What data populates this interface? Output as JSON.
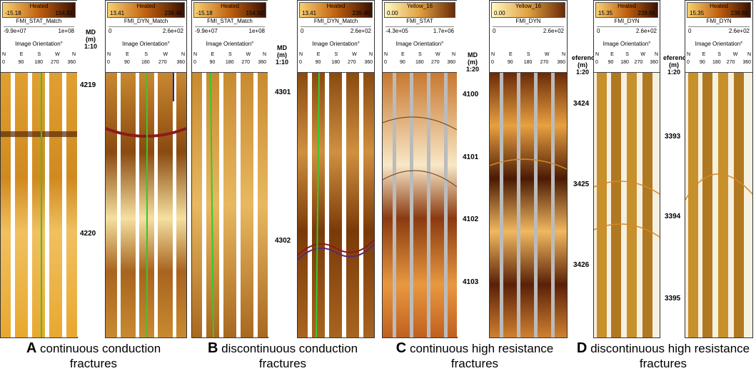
{
  "panels": [
    {
      "letter": "A",
      "caption_line1": "continuous conduction",
      "caption_line2": "fractures",
      "depth_title": [
        "MD",
        "(m)",
        "1:10"
      ],
      "depths": [
        "4219",
        "4220"
      ],
      "tracks": [
        {
          "colormap": "Heated",
          "cmin": "-15.18",
          "cmax": "154.92",
          "name": "FMI_STAT_Match",
          "rmin": "-9.9e+07",
          "rmax": "1e+08",
          "orient": "Image Orientation°",
          "ticks": [
            "N",
            "E",
            "S",
            "W",
            "N"
          ],
          "ticknums": [
            "0",
            "90",
            "180",
            "270",
            "360"
          ]
        },
        {
          "colormap": "Heated",
          "cmin": "13.41",
          "cmax": "239.45",
          "name": "FMI_DYN_Match",
          "rmin": "0",
          "rmax": "2.6e+02",
          "orient": "Image Orientation°",
          "ticks": [
            "N",
            "E",
            "S",
            "W",
            "N"
          ],
          "ticknums": [
            "0",
            "90",
            "180",
            "270",
            "360"
          ]
        }
      ]
    },
    {
      "letter": "B",
      "caption_line1": "discontinuous conduction",
      "caption_line2": "fractures",
      "depth_title": [
        "MD",
        "(m)",
        "1:10"
      ],
      "depths": [
        "4301",
        "4302"
      ],
      "tracks": [
        {
          "colormap": "Heated",
          "cmin": "-15.18",
          "cmax": "154.92",
          "name": "FMI_STAT_Match",
          "rmin": "-9.9e+07",
          "rmax": "1e+08",
          "orient": "Image Orientation°",
          "ticks": [
            "N",
            "E",
            "S",
            "W",
            "N"
          ],
          "ticknums": [
            "0",
            "90",
            "180",
            "270",
            "360"
          ]
        },
        {
          "colormap": "Heated",
          "cmin": "13.41",
          "cmax": "239.45",
          "name": "FMI_DYN_Match",
          "rmin": "0",
          "rmax": "2.6e+02",
          "orient": "Image Orientation°",
          "ticks": [
            "N",
            "E",
            "S",
            "W",
            "N"
          ],
          "ticknums": [
            "0",
            "90",
            "180",
            "270",
            "360"
          ]
        }
      ]
    },
    {
      "letter": "C",
      "caption_line1": "continuous high resistance",
      "caption_line2": "fractures",
      "depth_title": [
        "MD",
        "(m)",
        "1:20"
      ],
      "depths": [
        "4100",
        "4101",
        "4102",
        "4103"
      ],
      "tracks": [
        {
          "colormap": "Yellow_16",
          "cmin": "0.00",
          "cmax": "",
          "name": "FMI_STAT",
          "rmin": "-4.3e+05",
          "rmax": "1.7e+06",
          "orient": "Image Orientation°",
          "ticks": [
            "N",
            "E",
            "S",
            "W",
            "N"
          ],
          "ticknums": [
            "0",
            "90",
            "180",
            "270",
            "360"
          ]
        },
        {
          "colormap": "Yellow_16",
          "cmin": "0.00",
          "cmax": "",
          "name": "FMI_DYN",
          "rmin": "0",
          "rmax": "2.6e+02",
          "orient": "",
          "ticks": [
            "N",
            "E",
            "S",
            "W",
            "N"
          ],
          "ticknums": [
            "0",
            "90",
            "180",
            "270",
            "360"
          ]
        }
      ]
    },
    {
      "letter": "D",
      "caption_line1": "discontinuous high resistance",
      "caption_line2": "fractures",
      "depth_title": [
        "eferenc",
        "(m)",
        "1:20"
      ],
      "depths": [
        "3424",
        "3425",
        "3426"
      ],
      "depth_title2": [
        "eferenc",
        "(m)",
        "1:20"
      ],
      "depths2": [
        "3393",
        "3394",
        "3395"
      ],
      "tracks": [
        {
          "colormap": "Heated",
          "cmin": "15.35",
          "cmax": "239.65",
          "name": "FMI_DYN",
          "rmin": "0",
          "rmax": "2.6e+02",
          "orient": "Image Orientation°",
          "ticks": [
            "N",
            "E",
            "S",
            "W",
            "N"
          ],
          "ticknums": [
            "0",
            "90",
            "180",
            "270",
            "360"
          ]
        },
        {
          "colormap": "Heated",
          "cmin": "15.35",
          "cmax": "239.65",
          "name": "FMI_DYN",
          "rmin": "0",
          "rmax": "2.6e+02",
          "orient": "Image Orientation°",
          "ticks": [
            "N",
            "E",
            "S",
            "W",
            "N"
          ],
          "ticknums": [
            "0",
            "90",
            "180",
            "270",
            "360"
          ]
        }
      ]
    }
  ],
  "colors": {
    "heated_dark": "#5a2a08",
    "heated_mid": "#c8781a",
    "heated_light": "#f5c86a",
    "fracture_red": "#8b1a1a",
    "fracture_purple": "#5a2a6a",
    "fracture_orange": "#d08a30",
    "green_line": "#2ecc2e",
    "blue_line": "#1a2a9a"
  }
}
